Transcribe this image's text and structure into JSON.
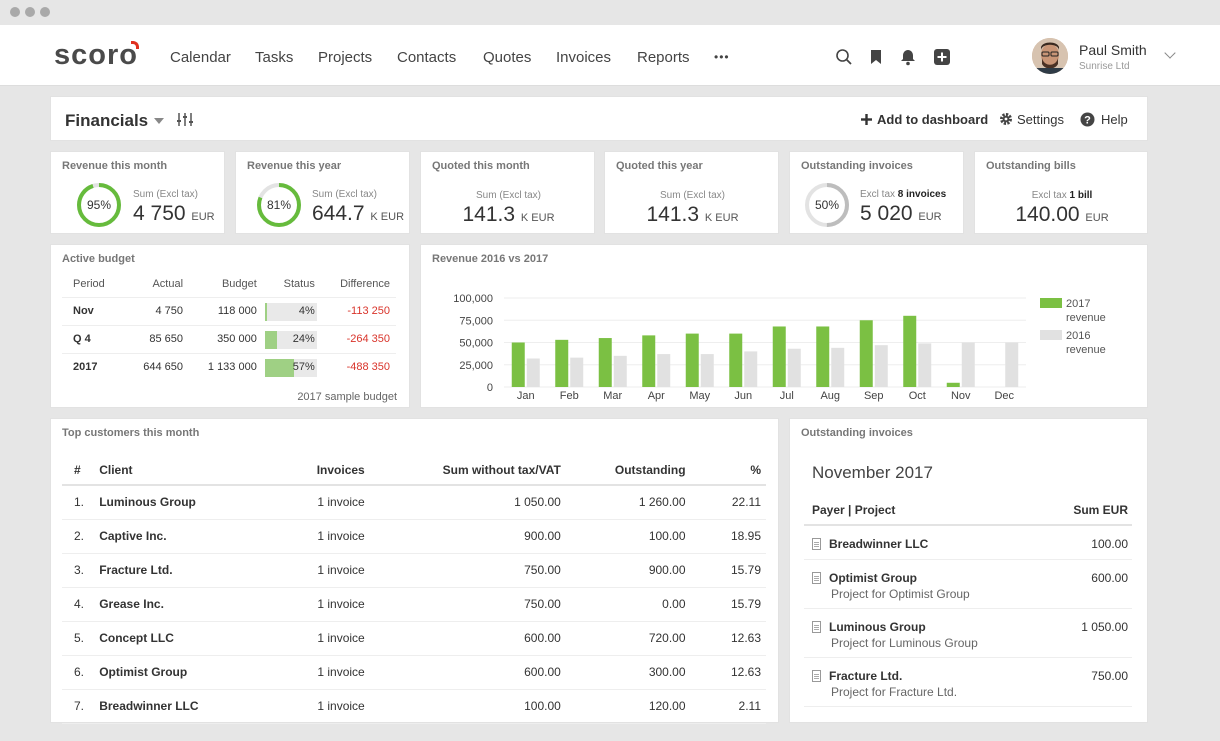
{
  "nav": {
    "logo": "scoro",
    "items": [
      "Calendar",
      "Tasks",
      "Projects",
      "Contacts",
      "Quotes",
      "Invoices",
      "Reports"
    ],
    "more": "•••",
    "user_name": "Paul Smith",
    "user_company": "Sunrise Ltd"
  },
  "toolbar": {
    "title": "Financials",
    "add_dashboard": "Add to dashboard",
    "settings": "Settings",
    "help": "Help"
  },
  "kpis": {
    "revenue_month": {
      "title": "Revenue this month",
      "ring_label": "95%",
      "ring_value": 0.95,
      "sub": "Sum (Excl tax)",
      "value": "4 750",
      "unit": "EUR"
    },
    "revenue_year": {
      "title": "Revenue this year",
      "ring_label": "81%",
      "ring_value": 0.81,
      "sub": "Sum (Excl tax)",
      "value": "644.7",
      "unit": "K EUR"
    },
    "quoted_month": {
      "title": "Quoted this month",
      "sub": "Sum (Excl tax)",
      "value": "141.3",
      "unit": "K EUR"
    },
    "quoted_year": {
      "title": "Quoted this year",
      "sub": "Sum (Excl tax)",
      "value": "141.3",
      "unit": "K EUR"
    },
    "outstanding_invoices": {
      "title": "Outstanding invoices",
      "ring_label": "50%",
      "ring_value": 0.5,
      "sub_prefix": "Excl tax",
      "sub_bold": "8 invoices",
      "value": "5 020",
      "unit": "EUR"
    },
    "outstanding_bills": {
      "title": "Outstanding bills",
      "sub_prefix": "Excl tax",
      "sub_bold": "1 bill",
      "value": "140.00",
      "unit": "EUR"
    }
  },
  "budget": {
    "title": "Active budget",
    "headers": [
      "Period",
      "Actual",
      "Budget",
      "Status",
      "Difference"
    ],
    "rows": [
      {
        "period": "Nov",
        "actual": "4 750",
        "budget": "118 000",
        "status": "4%",
        "status_value": 0.04,
        "diff": "-113 250"
      },
      {
        "period": "Q 4",
        "actual": "85 650",
        "budget": "350 000",
        "status": "24%",
        "status_value": 0.24,
        "diff": "-264 350"
      },
      {
        "period": "2017",
        "actual": "644 650",
        "budget": "1 133 000",
        "status": "57%",
        "status_value": 0.57,
        "diff": "-488 350"
      }
    ],
    "footer": "2017 sample budget"
  },
  "revenue_chart_title": "Revenue 2016 vs 2017",
  "chart_data": {
    "type": "bar",
    "categories": [
      "Jan",
      "Feb",
      "Mar",
      "Apr",
      "May",
      "Jun",
      "Jul",
      "Aug",
      "Sep",
      "Oct",
      "Nov",
      "Dec"
    ],
    "series": [
      {
        "name": "2017 revenue",
        "color": "#7bc043",
        "values": [
          50000,
          53000,
          55000,
          58000,
          60000,
          60000,
          68000,
          68000,
          75000,
          80000,
          4750,
          0
        ]
      },
      {
        "name": "2016 revenue",
        "color": "#e1e1e1",
        "values": [
          32000,
          33000,
          35000,
          37000,
          37000,
          40000,
          43000,
          44000,
          47000,
          49000,
          50000,
          50000
        ]
      }
    ],
    "yticks": [
      "100,000",
      "75,000",
      "50,000",
      "25,000",
      "0"
    ],
    "ylim": [
      0,
      100000
    ],
    "legend_position": "right"
  },
  "customers": {
    "title": "Top customers this month",
    "headers": [
      "#",
      "Client",
      "Invoices",
      "Sum without tax/VAT",
      "Outstanding",
      "%"
    ],
    "rows": [
      [
        "1.",
        "Luminous Group",
        "1 invoice",
        "1 050.00",
        "1 260.00",
        "22.11"
      ],
      [
        "2.",
        "Captive Inc.",
        "1 invoice",
        "900.00",
        "100.00",
        "18.95"
      ],
      [
        "3.",
        "Fracture Ltd.",
        "1 invoice",
        "750.00",
        "900.00",
        "15.79"
      ],
      [
        "4.",
        "Grease Inc.",
        "1 invoice",
        "750.00",
        "0.00",
        "15.79"
      ],
      [
        "5.",
        "Concept LLC",
        "1 invoice",
        "600.00",
        "720.00",
        "12.63"
      ],
      [
        "6.",
        "Optimist Group",
        "1 invoice",
        "600.00",
        "300.00",
        "12.63"
      ],
      [
        "7.",
        "Breadwinner LLC",
        "1 invoice",
        "100.00",
        "120.00",
        "2.11"
      ]
    ]
  },
  "outstanding": {
    "title": "Outstanding invoices",
    "month": "November 2017",
    "headers": [
      "Payer | Project",
      "Sum EUR"
    ],
    "rows": [
      {
        "payer": "Breadwinner LLC",
        "project": "",
        "sum": "100.00"
      },
      {
        "payer": "Optimist Group",
        "project": "Project for Optimist Group",
        "sum": "600.00"
      },
      {
        "payer": "Luminous Group",
        "project": "Project for Luminous Group",
        "sum": "1 050.00"
      },
      {
        "payer": "Fracture Ltd.",
        "project": "Project for Fracture Ltd.",
        "sum": "750.00"
      }
    ]
  }
}
